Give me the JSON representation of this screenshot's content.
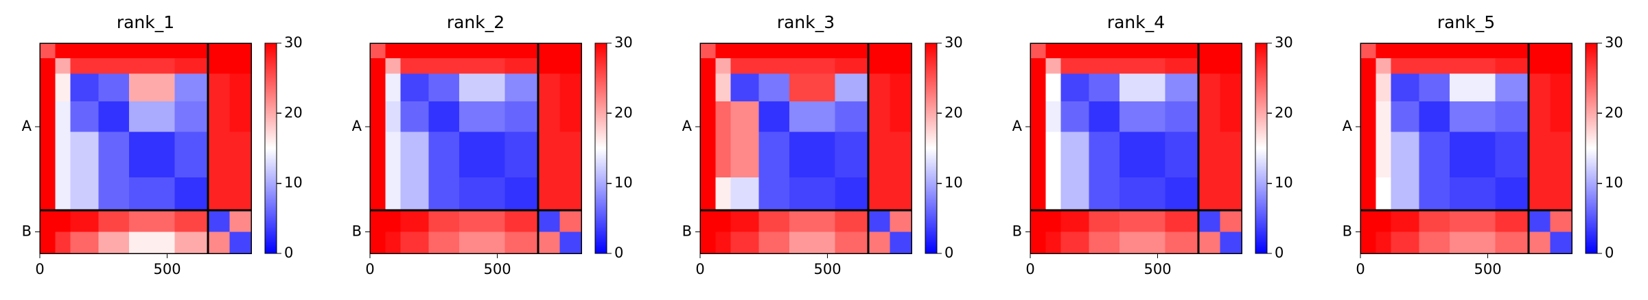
{
  "chart_data": [
    {
      "type": "heatmap",
      "title": "rank_1",
      "x_edges": [
        0,
        60,
        120,
        230,
        350,
        530,
        660,
        745,
        830
      ],
      "y_edges": [
        0,
        60,
        120,
        230,
        350,
        530,
        660,
        745,
        830
      ],
      "z": [
        [
          25,
          30,
          30,
          30,
          30,
          30,
          30,
          30
        ],
        [
          30,
          20,
          27,
          27,
          27,
          28,
          30,
          30
        ],
        [
          30,
          16,
          4,
          6,
          20,
          8,
          28,
          29
        ],
        [
          30,
          14,
          6,
          3,
          10,
          7,
          28,
          29
        ],
        [
          30,
          14,
          12,
          6,
          3,
          5,
          28,
          28
        ],
        [
          30,
          14,
          12,
          6,
          5,
          3,
          28,
          28
        ],
        [
          30,
          30,
          29,
          26,
          24,
          26,
          4,
          22
        ],
        [
          30,
          27,
          24,
          20,
          16,
          20,
          22,
          4
        ]
      ],
      "xlim": [
        0,
        830
      ],
      "ylim": [
        830,
        0
      ],
      "xticks": [
        0,
        500
      ],
      "yticks": [
        {
          "value": 330,
          "label": "A"
        },
        {
          "value": 745,
          "label": "B"
        }
      ],
      "chain_breaks": [
        660
      ],
      "clim": [
        0,
        30
      ],
      "cticks": [
        0,
        10,
        20,
        30
      ],
      "colormap": [
        "#0000ff",
        "#ffffff",
        "#ff0000"
      ]
    },
    {
      "type": "heatmap",
      "title": "rank_2",
      "x_edges": [
        0,
        60,
        120,
        230,
        350,
        530,
        660,
        745,
        830
      ],
      "y_edges": [
        0,
        60,
        120,
        230,
        350,
        530,
        660,
        745,
        830
      ],
      "z": [
        [
          25,
          30,
          30,
          30,
          30,
          30,
          30,
          30
        ],
        [
          30,
          20,
          27,
          27,
          27,
          28,
          30,
          30
        ],
        [
          30,
          14,
          4,
          6,
          12,
          8,
          28,
          29
        ],
        [
          30,
          13,
          6,
          3,
          7,
          6,
          28,
          29
        ],
        [
          30,
          14,
          11,
          5,
          3,
          4,
          28,
          28
        ],
        [
          30,
          14,
          11,
          5,
          4,
          3,
          28,
          28
        ],
        [
          30,
          30,
          29,
          26,
          25,
          27,
          4,
          24
        ],
        [
          30,
          29,
          27,
          24,
          22,
          24,
          23,
          4
        ]
      ],
      "xlim": [
        0,
        830
      ],
      "ylim": [
        830,
        0
      ],
      "xticks": [
        0,
        500
      ],
      "yticks": [
        {
          "value": 330,
          "label": "A"
        },
        {
          "value": 745,
          "label": "B"
        }
      ],
      "chain_breaks": [
        660
      ],
      "clim": [
        0,
        30
      ],
      "cticks": [
        0,
        10,
        20,
        30
      ],
      "colormap": [
        "#0000ff",
        "#ffffff",
        "#ff0000"
      ]
    },
    {
      "type": "heatmap",
      "title": "rank_3",
      "x_edges": [
        0,
        60,
        120,
        230,
        350,
        530,
        660,
        745,
        830
      ],
      "y_edges": [
        0,
        60,
        120,
        230,
        350,
        530,
        660,
        745,
        830
      ],
      "z": [
        [
          25,
          30,
          30,
          30,
          30,
          30,
          30,
          30
        ],
        [
          30,
          20,
          27,
          27,
          27,
          28,
          30,
          30
        ],
        [
          30,
          18,
          4,
          7,
          26,
          10,
          28,
          29
        ],
        [
          30,
          24,
          22,
          3,
          8,
          6,
          28,
          29
        ],
        [
          30,
          24,
          22,
          5,
          3,
          4,
          28,
          28
        ],
        [
          30,
          16,
          13,
          5,
          4,
          3,
          28,
          28
        ],
        [
          30,
          30,
          29,
          26,
          24,
          26,
          4,
          23
        ],
        [
          30,
          29,
          27,
          24,
          21,
          24,
          23,
          4
        ]
      ],
      "xlim": [
        0,
        830
      ],
      "ylim": [
        830,
        0
      ],
      "xticks": [
        0,
        500
      ],
      "yticks": [
        {
          "value": 330,
          "label": "A"
        },
        {
          "value": 745,
          "label": "B"
        }
      ],
      "chain_breaks": [
        660
      ],
      "clim": [
        0,
        30
      ],
      "cticks": [
        0,
        10,
        20,
        30
      ],
      "colormap": [
        "#0000ff",
        "#ffffff",
        "#ff0000"
      ]
    },
    {
      "type": "heatmap",
      "title": "rank_4",
      "x_edges": [
        0,
        60,
        120,
        230,
        350,
        530,
        660,
        745,
        830
      ],
      "y_edges": [
        0,
        60,
        120,
        230,
        350,
        530,
        660,
        745,
        830
      ],
      "z": [
        [
          25,
          30,
          30,
          30,
          30,
          30,
          30,
          30
        ],
        [
          30,
          20,
          27,
          27,
          27,
          28,
          30,
          30
        ],
        [
          30,
          15,
          4,
          6,
          13,
          8,
          28,
          29
        ],
        [
          30,
          14,
          6,
          3,
          7,
          6,
          28,
          29
        ],
        [
          30,
          15,
          11,
          5,
          3,
          4,
          28,
          28
        ],
        [
          30,
          15,
          11,
          5,
          4,
          3,
          28,
          28
        ],
        [
          30,
          30,
          29,
          26,
          25,
          27,
          4,
          24
        ],
        [
          30,
          29,
          27,
          24,
          22,
          24,
          23,
          4
        ]
      ],
      "xlim": [
        0,
        830
      ],
      "ylim": [
        830,
        0
      ],
      "xticks": [
        0,
        500
      ],
      "yticks": [
        {
          "value": 330,
          "label": "A"
        },
        {
          "value": 745,
          "label": "B"
        }
      ],
      "chain_breaks": [
        660
      ],
      "clim": [
        0,
        30
      ],
      "cticks": [
        0,
        10,
        20,
        30
      ],
      "colormap": [
        "#0000ff",
        "#ffffff",
        "#ff0000"
      ]
    },
    {
      "type": "heatmap",
      "title": "rank_5",
      "x_edges": [
        0,
        60,
        120,
        230,
        350,
        530,
        660,
        745,
        830
      ],
      "y_edges": [
        0,
        60,
        120,
        230,
        350,
        530,
        660,
        745,
        830
      ],
      "z": [
        [
          25,
          30,
          30,
          30,
          30,
          30,
          30,
          30
        ],
        [
          30,
          20,
          27,
          27,
          27,
          28,
          30,
          30
        ],
        [
          30,
          17,
          4,
          6,
          14,
          8,
          28,
          29
        ],
        [
          30,
          16,
          6,
          3,
          7,
          6,
          28,
          29
        ],
        [
          30,
          16,
          11,
          5,
          3,
          4,
          28,
          28
        ],
        [
          30,
          15,
          11,
          5,
          4,
          3,
          28,
          28
        ],
        [
          30,
          30,
          29,
          26,
          25,
          27,
          4,
          24
        ],
        [
          30,
          29,
          27,
          24,
          22,
          24,
          23,
          4
        ]
      ],
      "xlim": [
        0,
        830
      ],
      "ylim": [
        830,
        0
      ],
      "xticks": [
        0,
        500
      ],
      "yticks": [
        {
          "value": 330,
          "label": "A"
        },
        {
          "value": 745,
          "label": "B"
        }
      ],
      "chain_breaks": [
        660
      ],
      "clim": [
        0,
        30
      ],
      "cticks": [
        0,
        10,
        20,
        30
      ],
      "colormap": [
        "#0000ff",
        "#ffffff",
        "#ff0000"
      ]
    }
  ]
}
